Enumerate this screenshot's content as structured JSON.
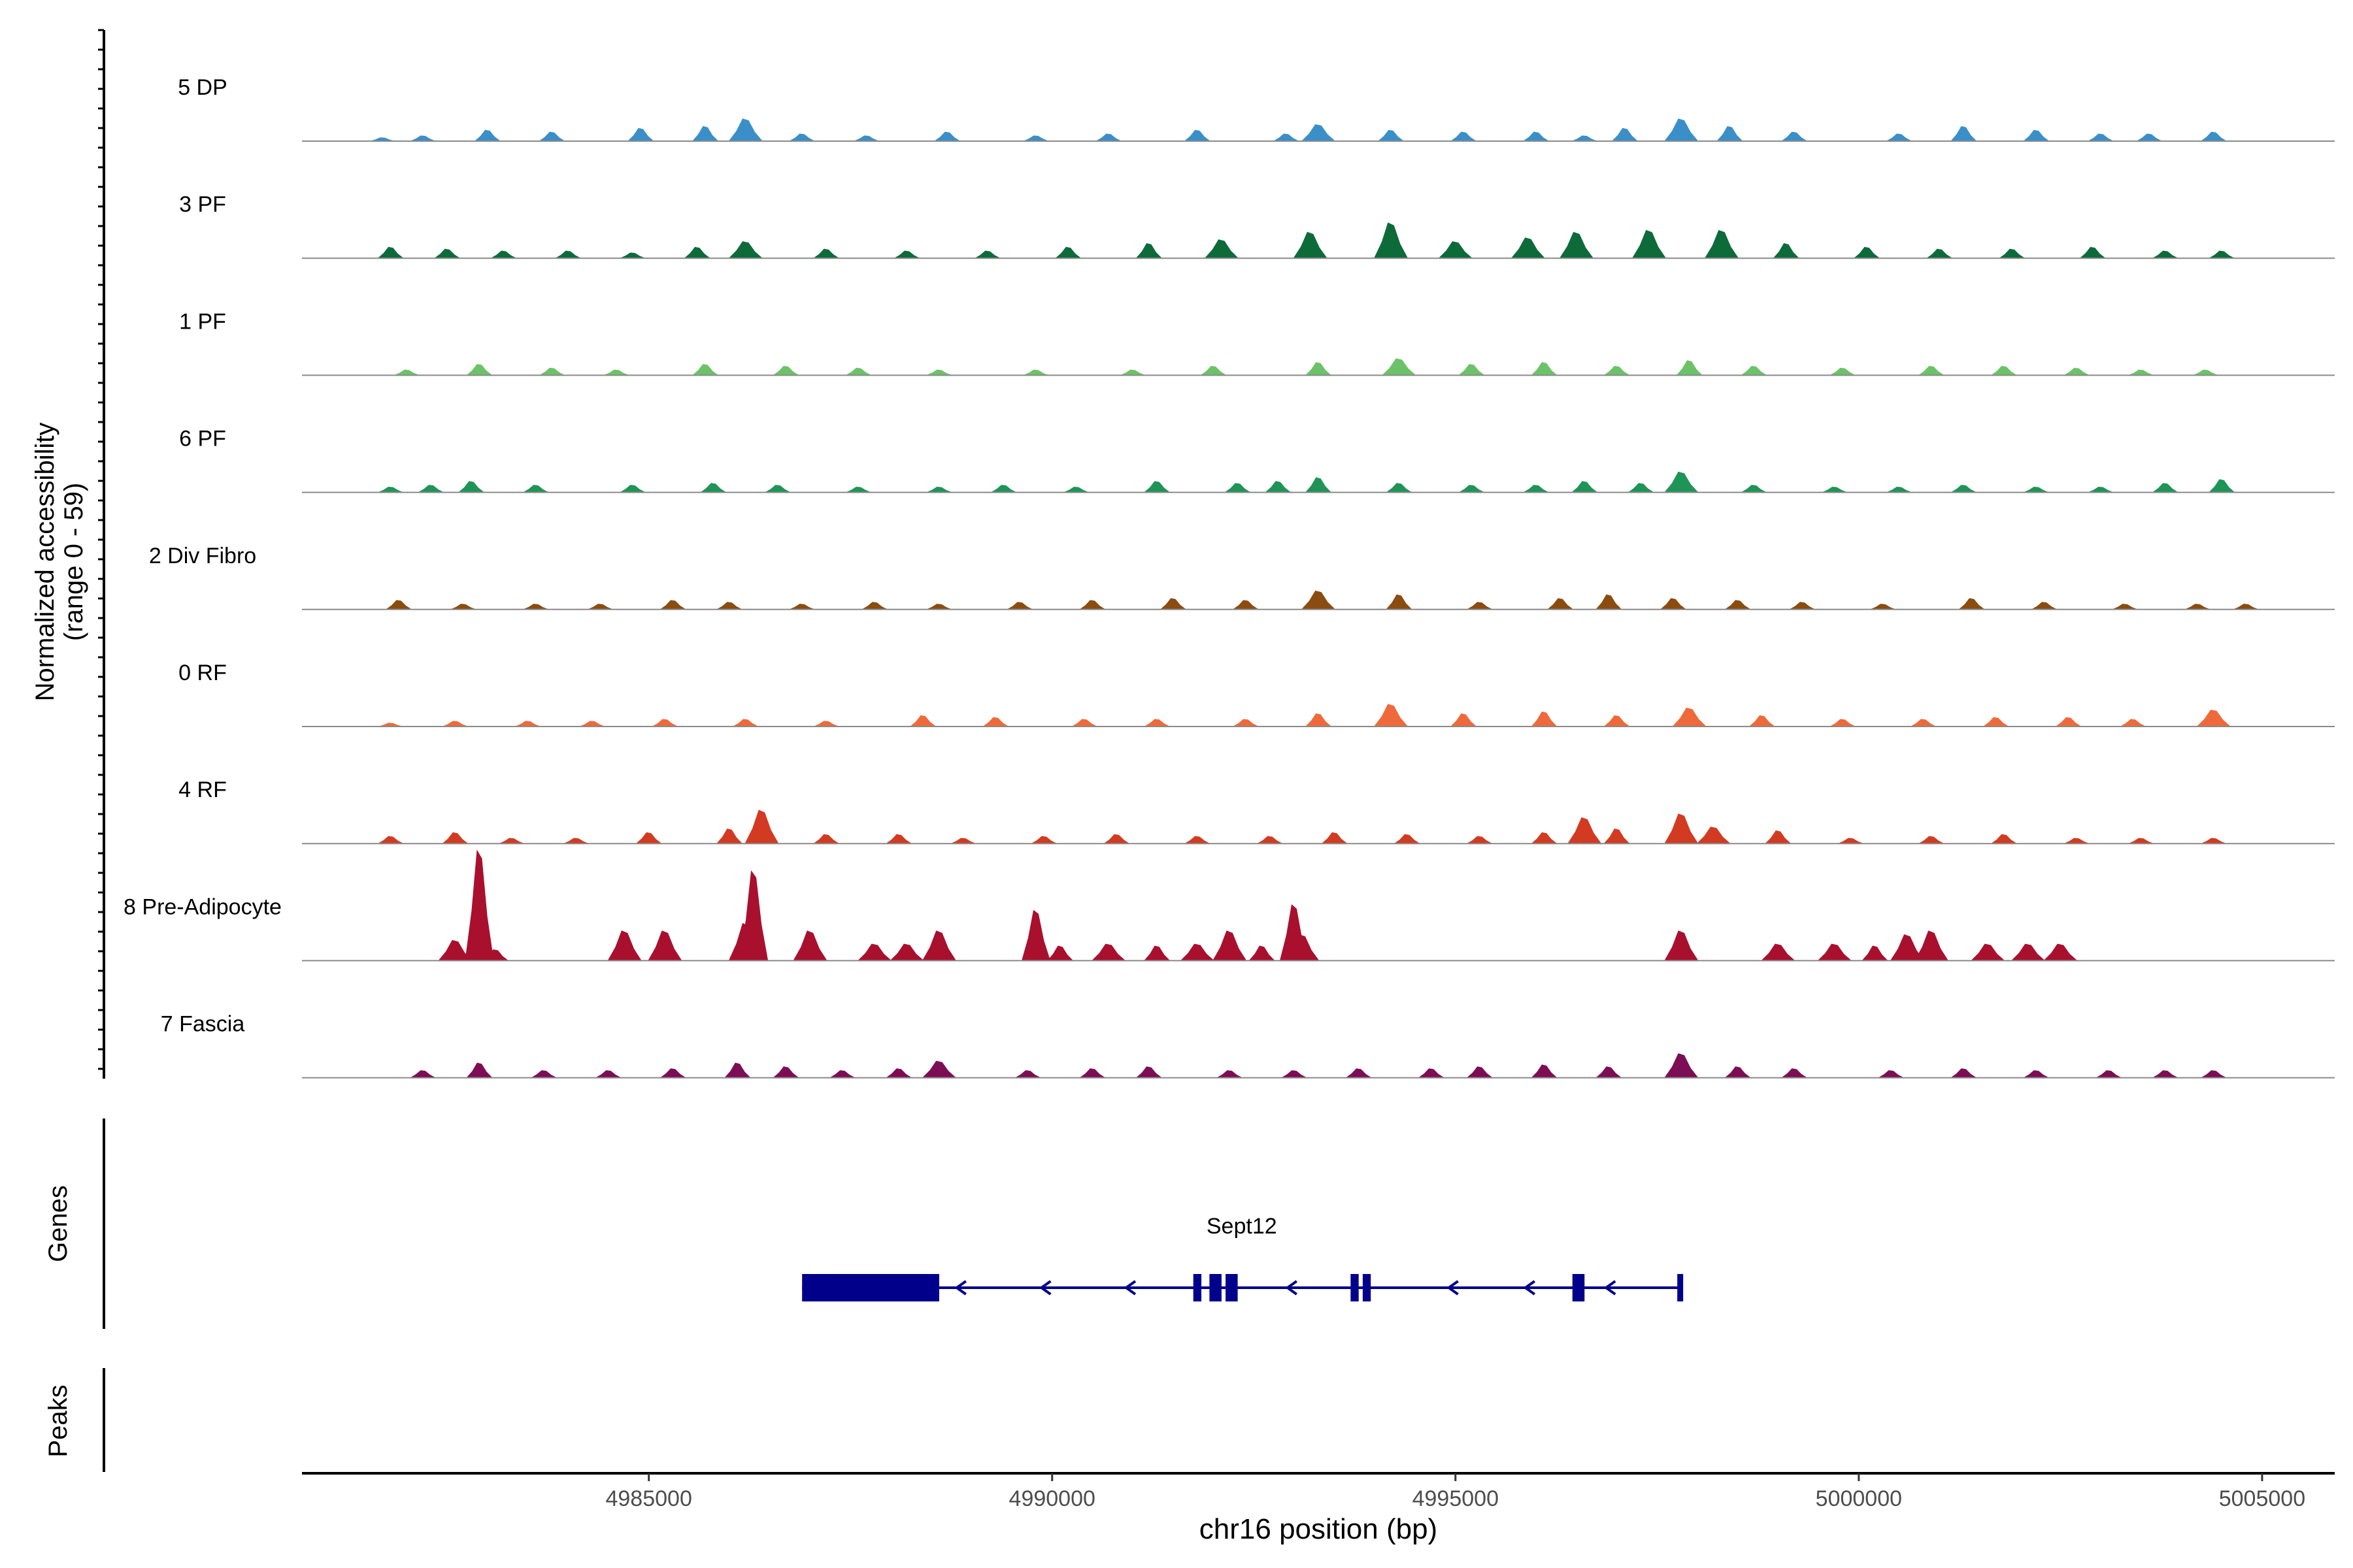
{
  "chart_data": {
    "type": "area",
    "ylabel": "Normalized accessibility",
    "ylabel_range": "(range 0 - 59)",
    "xlabel": "chr16 position (bp)",
    "xlim": [
      4980700,
      5005900
    ],
    "ylim": [
      0,
      59
    ],
    "x_ticks": [
      {
        "value": 4985000,
        "label": "4985000"
      },
      {
        "value": 4990000,
        "label": "4990000"
      },
      {
        "value": 4995000,
        "label": "4995000"
      },
      {
        "value": 5000000,
        "label": "5000000"
      },
      {
        "value": 5005000,
        "label": "5005000"
      }
    ],
    "series": [
      {
        "name": "5 DP",
        "color": "#3a8fc9",
        "peaks": [
          [
            4981700,
            2
          ],
          [
            4982200,
            3
          ],
          [
            4983000,
            6
          ],
          [
            4983800,
            5
          ],
          [
            4984900,
            7
          ],
          [
            4985700,
            8
          ],
          [
            4986200,
            12
          ],
          [
            4986900,
            4
          ],
          [
            4987700,
            3
          ],
          [
            4988700,
            5
          ],
          [
            4989800,
            3
          ],
          [
            4990700,
            4
          ],
          [
            4991800,
            6
          ],
          [
            4992900,
            4
          ],
          [
            4993300,
            9
          ],
          [
            4994200,
            6
          ],
          [
            4995100,
            5
          ],
          [
            4996000,
            5
          ],
          [
            4996600,
            3
          ],
          [
            4997100,
            7
          ],
          [
            4997800,
            12
          ],
          [
            4998400,
            8
          ],
          [
            4999200,
            5
          ],
          [
            5000500,
            4
          ],
          [
            5001300,
            8
          ],
          [
            5002200,
            6
          ],
          [
            5003000,
            4
          ],
          [
            5003600,
            4
          ],
          [
            5004400,
            5
          ]
        ]
      },
      {
        "name": "3 PF",
        "color": "#0d6b3a",
        "peaks": [
          [
            4981800,
            6
          ],
          [
            4982500,
            5
          ],
          [
            4983200,
            4
          ],
          [
            4984000,
            4
          ],
          [
            4984800,
            3
          ],
          [
            4985600,
            6
          ],
          [
            4986200,
            9
          ],
          [
            4987200,
            5
          ],
          [
            4988200,
            4
          ],
          [
            4989200,
            4
          ],
          [
            4990200,
            6
          ],
          [
            4991200,
            8
          ],
          [
            4992100,
            10
          ],
          [
            4993200,
            14
          ],
          [
            4994200,
            19
          ],
          [
            4995000,
            9
          ],
          [
            4995900,
            11
          ],
          [
            4996500,
            14
          ],
          [
            4997400,
            15
          ],
          [
            4998300,
            15
          ],
          [
            4999100,
            8
          ],
          [
            5000100,
            6
          ],
          [
            5001000,
            5
          ],
          [
            5001900,
            5
          ],
          [
            5002900,
            6
          ],
          [
            5003800,
            4
          ],
          [
            5004500,
            4
          ]
        ]
      },
      {
        "name": "1 PF",
        "color": "#6cc268",
        "peaks": [
          [
            4982000,
            3
          ],
          [
            4982900,
            6
          ],
          [
            4983800,
            4
          ],
          [
            4984600,
            3
          ],
          [
            4985700,
            6
          ],
          [
            4986700,
            5
          ],
          [
            4987600,
            4
          ],
          [
            4988600,
            3
          ],
          [
            4989800,
            3
          ],
          [
            4991000,
            3
          ],
          [
            4992000,
            5
          ],
          [
            4993300,
            7
          ],
          [
            4994300,
            9
          ],
          [
            4995200,
            6
          ],
          [
            4996100,
            7
          ],
          [
            4997000,
            5
          ],
          [
            4997900,
            8
          ],
          [
            4998700,
            5
          ],
          [
            4999800,
            4
          ],
          [
            5000900,
            5
          ],
          [
            5001800,
            5
          ],
          [
            5002700,
            4
          ],
          [
            5003500,
            3
          ],
          [
            5004300,
            3
          ]
        ]
      },
      {
        "name": "6 PF",
        "color": "#1e9456",
        "peaks": [
          [
            4981800,
            3
          ],
          [
            4982300,
            4
          ],
          [
            4982800,
            6
          ],
          [
            4983600,
            4
          ],
          [
            4984800,
            4
          ],
          [
            4985800,
            5
          ],
          [
            4986600,
            4
          ],
          [
            4987600,
            3
          ],
          [
            4988600,
            3
          ],
          [
            4989400,
            4
          ],
          [
            4990300,
            3
          ],
          [
            4991300,
            6
          ],
          [
            4992300,
            5
          ],
          [
            4992800,
            6
          ],
          [
            4993300,
            8
          ],
          [
            4994300,
            5
          ],
          [
            4995200,
            4
          ],
          [
            4996000,
            4
          ],
          [
            4996600,
            6
          ],
          [
            4997300,
            5
          ],
          [
            4997800,
            11
          ],
          [
            4998700,
            4
          ],
          [
            4999700,
            3
          ],
          [
            5000500,
            3
          ],
          [
            5001300,
            4
          ],
          [
            5002200,
            3
          ],
          [
            5003000,
            3
          ],
          [
            5003800,
            5
          ],
          [
            5004500,
            7
          ]
        ]
      },
      {
        "name": "2 Div Fibro",
        "color": "#8a4c0f",
        "peaks": [
          [
            4981900,
            5
          ],
          [
            4982700,
            3
          ],
          [
            4983600,
            3
          ],
          [
            4984400,
            3
          ],
          [
            4985300,
            5
          ],
          [
            4986000,
            4
          ],
          [
            4986900,
            3
          ],
          [
            4987800,
            4
          ],
          [
            4988600,
            3
          ],
          [
            4989600,
            4
          ],
          [
            4990500,
            5
          ],
          [
            4991500,
            6
          ],
          [
            4992400,
            5
          ],
          [
            4993300,
            10
          ],
          [
            4994300,
            8
          ],
          [
            4995300,
            4
          ],
          [
            4996300,
            6
          ],
          [
            4996900,
            8
          ],
          [
            4997700,
            6
          ],
          [
            4998500,
            5
          ],
          [
            4999300,
            4
          ],
          [
            5000300,
            3
          ],
          [
            5001400,
            6
          ],
          [
            5002300,
            4
          ],
          [
            5003300,
            3
          ],
          [
            5004200,
            3
          ],
          [
            5004800,
            3
          ]
        ]
      },
      {
        "name": "0 RF",
        "color": "#ef6a3a",
        "peaks": [
          [
            4981800,
            2
          ],
          [
            4982600,
            3
          ],
          [
            4983500,
            3
          ],
          [
            4984300,
            3
          ],
          [
            4985200,
            4
          ],
          [
            4986200,
            4
          ],
          [
            4987200,
            3
          ],
          [
            4988400,
            6
          ],
          [
            4989300,
            5
          ],
          [
            4990400,
            4
          ],
          [
            4991300,
            4
          ],
          [
            4992400,
            4
          ],
          [
            4993300,
            7
          ],
          [
            4994200,
            12
          ],
          [
            4995100,
            7
          ],
          [
            4996100,
            8
          ],
          [
            4997000,
            6
          ],
          [
            4997900,
            10
          ],
          [
            4998800,
            6
          ],
          [
            4999800,
            4
          ],
          [
            5000800,
            4
          ],
          [
            5001700,
            5
          ],
          [
            5002600,
            5
          ],
          [
            5003400,
            4
          ],
          [
            5004400,
            9
          ]
        ]
      },
      {
        "name": "4 RF",
        "color": "#d23b22",
        "peaks": [
          [
            4981800,
            4
          ],
          [
            4982600,
            6
          ],
          [
            4983300,
            3
          ],
          [
            4984100,
            3
          ],
          [
            4985000,
            6
          ],
          [
            4986000,
            8
          ],
          [
            4986400,
            18
          ],
          [
            4987200,
            5
          ],
          [
            4988100,
            5
          ],
          [
            4988900,
            3
          ],
          [
            4989900,
            4
          ],
          [
            4990800,
            5
          ],
          [
            4991800,
            4
          ],
          [
            4992700,
            4
          ],
          [
            4993500,
            6
          ],
          [
            4994400,
            5
          ],
          [
            4995300,
            4
          ],
          [
            4996100,
            6
          ],
          [
            4996600,
            14
          ],
          [
            4997000,
            8
          ],
          [
            4997800,
            16
          ],
          [
            4998200,
            9
          ],
          [
            4999000,
            7
          ],
          [
            4999900,
            3
          ],
          [
            5000900,
            4
          ],
          [
            5001800,
            5
          ],
          [
            5002700,
            3
          ],
          [
            5003500,
            3
          ],
          [
            5004400,
            3
          ]
        ]
      },
      {
        "name": "8 Pre-Adipocyte",
        "color": "#a9102e",
        "peaks": [
          [
            4982600,
            11
          ],
          [
            4982900,
            59
          ],
          [
            4983100,
            6
          ],
          [
            4984700,
            16
          ],
          [
            4985200,
            16
          ],
          [
            4986200,
            20
          ],
          [
            4986300,
            48
          ],
          [
            4987000,
            16
          ],
          [
            4987800,
            9
          ],
          [
            4988200,
            9
          ],
          [
            4988600,
            16
          ],
          [
            4989800,
            27
          ],
          [
            4990100,
            8
          ],
          [
            4990700,
            9
          ],
          [
            4991300,
            8
          ],
          [
            4991800,
            9
          ],
          [
            4992200,
            16
          ],
          [
            4992600,
            8
          ],
          [
            4993000,
            30
          ],
          [
            4993100,
            14
          ],
          [
            4997800,
            16
          ],
          [
            4999000,
            9
          ],
          [
            4999700,
            9
          ],
          [
            5000200,
            8
          ],
          [
            5000600,
            14
          ],
          [
            5000900,
            16
          ],
          [
            5001600,
            9
          ],
          [
            5002100,
            9
          ],
          [
            5002500,
            9
          ]
        ]
      },
      {
        "name": "7 Fascia",
        "color": "#7d0d55",
        "peaks": [
          [
            4982200,
            4
          ],
          [
            4982900,
            8
          ],
          [
            4983700,
            4
          ],
          [
            4984500,
            4
          ],
          [
            4985300,
            5
          ],
          [
            4986100,
            8
          ],
          [
            4986700,
            6
          ],
          [
            4987400,
            4
          ],
          [
            4988100,
            5
          ],
          [
            4988600,
            9
          ],
          [
            4989700,
            4
          ],
          [
            4990500,
            5
          ],
          [
            4991200,
            6
          ],
          [
            4992200,
            4
          ],
          [
            4993000,
            4
          ],
          [
            4993800,
            5
          ],
          [
            4994700,
            5
          ],
          [
            4995300,
            6
          ],
          [
            4996100,
            7
          ],
          [
            4996900,
            6
          ],
          [
            4997800,
            13
          ],
          [
            4998500,
            6
          ],
          [
            4999200,
            5
          ],
          [
            5000400,
            4
          ],
          [
            5001300,
            5
          ],
          [
            5002200,
            4
          ],
          [
            5003100,
            4
          ],
          [
            5003800,
            4
          ],
          [
            5004400,
            4
          ]
        ]
      }
    ],
    "genes_track": {
      "label": "Genes",
      "color": "#00008b",
      "gene": {
        "name": "Sept12",
        "start": 4986900,
        "end": 4997800,
        "strand": "-",
        "exons": [
          [
            4986900,
            4988600
          ],
          [
            4991750,
            4991850
          ],
          [
            4991950,
            4992100
          ],
          [
            4992150,
            4992300
          ],
          [
            4993700,
            4993800
          ],
          [
            4993850,
            4993950
          ],
          [
            4996450,
            4996600
          ],
          [
            4997750,
            4997800
          ]
        ],
        "arrows_at": [
          4988850,
          4989900,
          4990950,
          4992950,
          4994950,
          4995900,
          4996900
        ]
      }
    },
    "peaks_track": {
      "label": "Peaks",
      "peaks": []
    },
    "grid": false,
    "legend": "none"
  }
}
